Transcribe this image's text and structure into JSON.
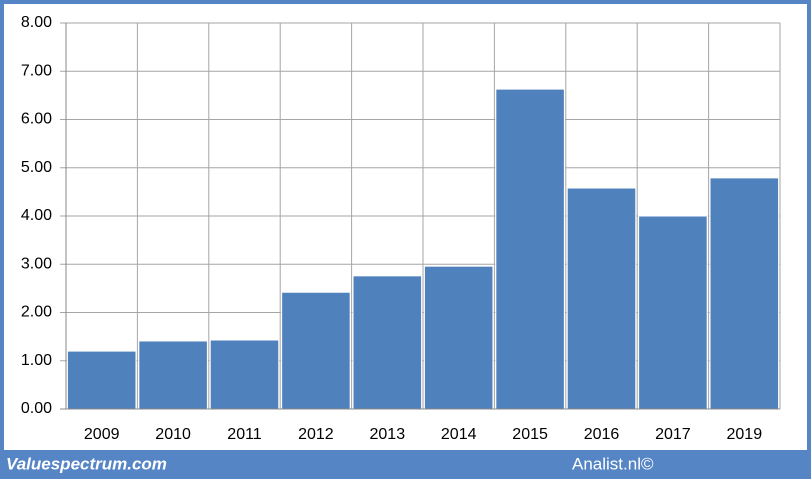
{
  "chart_data": {
    "type": "bar",
    "categories": [
      "2009",
      "2010",
      "2011",
      "2012",
      "2013",
      "2014",
      "2015",
      "2016",
      "2017",
      "2019"
    ],
    "values": [
      1.2,
      1.41,
      1.43,
      2.42,
      2.76,
      2.96,
      6.63,
      4.58,
      4.0,
      4.79
    ],
    "color": "#4f81bd",
    "ylim": [
      0,
      8
    ],
    "yticks": [
      {
        "value": 0,
        "label": "0.00"
      },
      {
        "value": 1,
        "label": "1.00"
      },
      {
        "value": 2,
        "label": "2.00"
      },
      {
        "value": 3,
        "label": "3.00"
      },
      {
        "value": 4,
        "label": "4.00"
      },
      {
        "value": 5,
        "label": "5.00"
      },
      {
        "value": 6,
        "label": "6.00"
      },
      {
        "value": 7,
        "label": "7.00"
      },
      {
        "value": 8,
        "label": "8.00"
      }
    ],
    "grid": true,
    "footer_left": "Valuespectrum.com",
    "footer_right": "Analist.nl©"
  }
}
